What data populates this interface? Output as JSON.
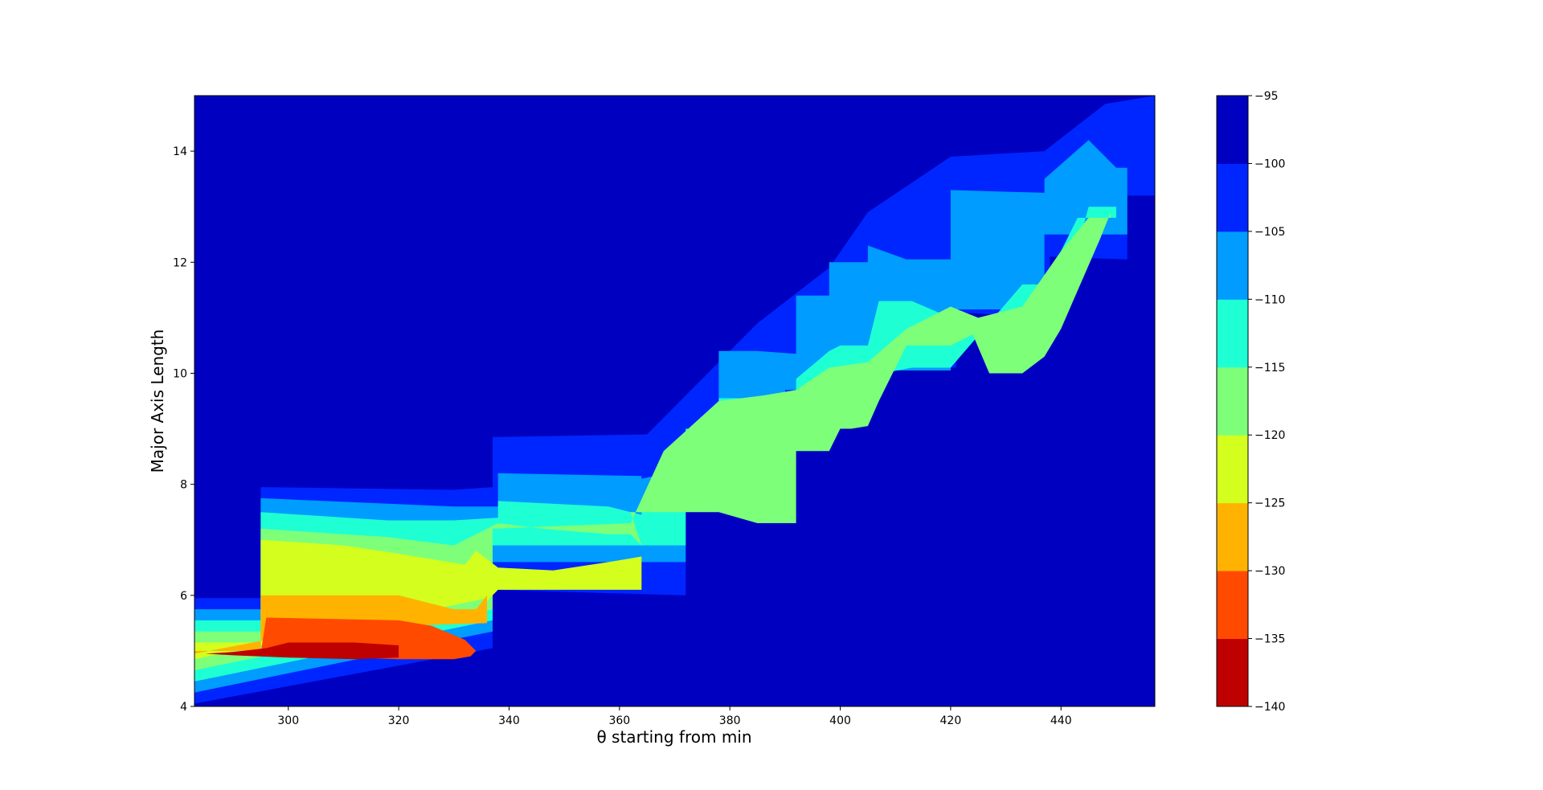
{
  "chart_data": {
    "type": "contourf",
    "title": "",
    "xlabel": "θ starting from min",
    "ylabel": "Major Axis Length",
    "xlim": [
      283,
      457
    ],
    "ylim": [
      4,
      15
    ],
    "xticks": [
      "300",
      "320",
      "340",
      "360",
      "380",
      "400",
      "420",
      "440"
    ],
    "xtick_values": [
      300,
      320,
      340,
      360,
      380,
      400,
      420,
      440
    ],
    "yticks": [
      "4",
      "6",
      "8",
      "10",
      "12",
      "14"
    ],
    "ytick_values": [
      4,
      6,
      8,
      10,
      12,
      14
    ],
    "colorbar": {
      "levels": [
        -140,
        -135,
        -130,
        -125,
        -120,
        -115,
        -110,
        -105,
        -100,
        -95
      ],
      "tick_labels": [
        "−140",
        "−135",
        "−130",
        "−125",
        "−120",
        "−115",
        "−110",
        "−105",
        "−100",
        "−95"
      ],
      "colors": [
        "#bf0000",
        "#ff4a00",
        "#ffb300",
        "#d4ff1e",
        "#7dff7a",
        "#1effd4",
        "#009cff",
        "#0026ff",
        "#0000c1"
      ]
    },
    "grid": false,
    "regions": [
      {
        "level": -100,
        "x": [
          283,
          295,
          295,
          330,
          337,
          337,
          365,
          365,
          385,
          385,
          398,
          398,
          405,
          405,
          420,
          420,
          437,
          437,
          448,
          448,
          457,
          457,
          452,
          452,
          438,
          438,
          421,
          421,
          403,
          403,
          387,
          387,
          372,
          372,
          337,
          337,
          283
        ],
        "y": [
          5.95,
          5.95,
          7.95,
          7.9,
          7.95,
          8.85,
          8.9,
          8.9,
          10.9,
          10.9,
          11.9,
          11.9,
          12.9,
          12.9,
          13.9,
          13.9,
          14.0,
          14.0,
          14.85,
          14.85,
          15,
          13.2,
          13.2,
          12.05,
          12.1,
          11.0,
          11.1,
          10.1,
          10.05,
          9.05,
          9.1,
          8.0,
          7.95,
          6.0,
          6.1,
          5.05,
          4.05
        ]
      },
      {
        "level": -105,
        "x": [
          283,
          295,
          295,
          330,
          338,
          338,
          364,
          364,
          378,
          378,
          385,
          392,
          392,
          398,
          398,
          405,
          405,
          412,
          420,
          420,
          437,
          437,
          445,
          450,
          452,
          452,
          437,
          437,
          420,
          420,
          404,
          404,
          390,
          390,
          372,
          372,
          337,
          337,
          283
        ],
        "y": [
          5.75,
          5.75,
          7.75,
          7.6,
          7.6,
          8.2,
          8.15,
          8.1,
          8.4,
          10.4,
          10.4,
          10.35,
          11.4,
          11.4,
          12.0,
          12.0,
          12.3,
          12.05,
          12.05,
          13.3,
          13.25,
          13.5,
          14.2,
          13.7,
          13.7,
          12.5,
          12.5,
          11.15,
          11.15,
          10.05,
          10.05,
          9.7,
          9.7,
          8.5,
          8.5,
          6.6,
          6.6,
          5.35,
          4.25
        ]
      },
      {
        "level": -110,
        "x": [
          283,
          295,
          295,
          318,
          330,
          338,
          338,
          358,
          364,
          364,
          375,
          378,
          378,
          385,
          392,
          392,
          398,
          400,
          405,
          407,
          413,
          420,
          427,
          433,
          440,
          445,
          450,
          450,
          443,
          437,
          433,
          420,
          413,
          405,
          400,
          396,
          392,
          378,
          372,
          372,
          360,
          337,
          337,
          283
        ],
        "y": [
          5.55,
          5.55,
          7.5,
          7.35,
          7.35,
          7.4,
          7.7,
          7.6,
          7.45,
          7.7,
          7.7,
          8.0,
          9.55,
          9.55,
          9.55,
          9.9,
          10.4,
          10.5,
          10.5,
          11.3,
          11.3,
          11.0,
          10.5,
          10.5,
          11.2,
          13.0,
          13.0,
          12.8,
          12.8,
          11.6,
          11.6,
          10.1,
          10.1,
          9.95,
          9.95,
          9.45,
          9.45,
          9.0,
          9.0,
          6.9,
          6.9,
          6.9,
          5.55,
          4.45
        ]
      },
      {
        "level": -115,
        "x": [
          283,
          295,
          295,
          318,
          330,
          338,
          346,
          358,
          362,
          364,
          362,
          378,
          385,
          392,
          392,
          398,
          400,
          402,
          405,
          407,
          412,
          420,
          424,
          427,
          433,
          437,
          440,
          447,
          449,
          449,
          445,
          440,
          433,
          425,
          420,
          412,
          405,
          398,
          392,
          386,
          378,
          368,
          362,
          337,
          337,
          283
        ],
        "y": [
          5.35,
          5.35,
          7.2,
          7.05,
          6.9,
          7.3,
          7.2,
          7.1,
          7.1,
          6.9,
          7.5,
          7.5,
          7.3,
          7.3,
          8.6,
          8.6,
          9.0,
          9.0,
          9.05,
          9.5,
          10.5,
          10.5,
          10.7,
          10.0,
          10.0,
          10.3,
          10.8,
          12.4,
          12.9,
          12.8,
          12.8,
          12.2,
          11.2,
          11.0,
          11.2,
          10.8,
          10.2,
          10.1,
          9.7,
          9.6,
          9.5,
          8.6,
          7.3,
          7.2,
          5.75,
          4.65
        ]
      },
      {
        "level": -120,
        "x": [
          283,
          295,
          295,
          310,
          320,
          332,
          334,
          338,
          348,
          358,
          364,
          364,
          338,
          336,
          336,
          283
        ],
        "y": [
          5.15,
          5.15,
          7.0,
          6.9,
          6.75,
          6.55,
          6.8,
          6.5,
          6.45,
          6.6,
          6.7,
          6.1,
          6.1,
          5.9,
          5.95,
          4.85
        ]
      },
      {
        "level": -125,
        "x": [
          283,
          295,
          295,
          320,
          330,
          334,
          336,
          336,
          320,
          304,
          283
        ],
        "y": [
          5.0,
          5.0,
          6.0,
          6.0,
          5.75,
          5.75,
          6.0,
          5.5,
          5.45,
          5.35,
          4.95
        ]
      },
      {
        "level": -130,
        "x": [
          283,
          295,
          296,
          320,
          326,
          332,
          334,
          333,
          330,
          320,
          305,
          290,
          283
        ],
        "y": [
          4.95,
          4.95,
          5.6,
          5.55,
          5.45,
          5.2,
          5.0,
          4.9,
          4.85,
          4.85,
          4.9,
          4.95,
          4.95
        ]
      },
      {
        "level": -135,
        "x": [
          285,
          290,
          296,
          300,
          312,
          320,
          320,
          312,
          300,
          290,
          285
        ],
        "y": [
          4.95,
          4.98,
          5.05,
          5.15,
          5.15,
          5.1,
          4.88,
          4.85,
          4.88,
          4.92,
          4.95
        ]
      }
    ]
  }
}
